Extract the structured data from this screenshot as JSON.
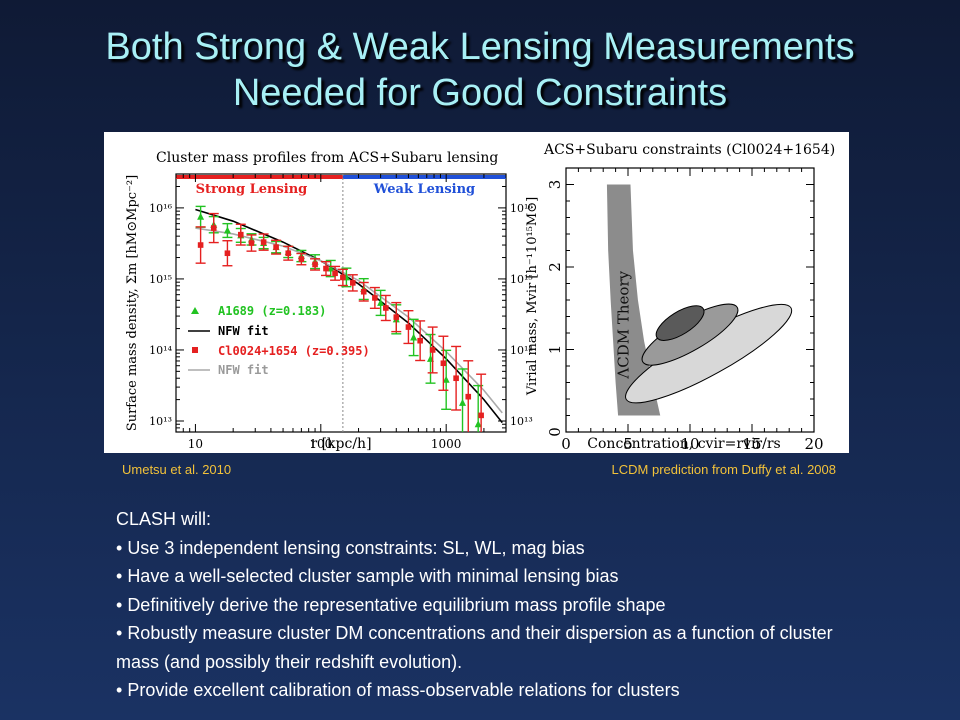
{
  "slide": {
    "title_line1": "Both Strong & Weak Lensing Measurements",
    "title_line2": "Needed for Good Constraints",
    "credit_left": "Umetsu et al. 2010",
    "credit_right": "LCDM prediction from Duffy et al. 2008",
    "clash_heading": "CLASH will:",
    "bullets": [
      "Use 3 independent lensing constraints: SL, WL, mag bias",
      "Have a well-selected cluster sample with minimal lensing bias",
      "Definitively derive the representative equilibrium mass profile shape",
      "Robustly measure cluster DM concentrations and their dispersion as a function of cluster mass (and possibly their redshift evolution).",
      "Provide excellent calibration of mass-observable relations for clusters"
    ]
  },
  "chart_data": [
    {
      "type": "scatter",
      "title": "Cluster mass profiles from ACS+Subaru lensing",
      "xlabel": "r [kpc/h]",
      "ylabel": "Surface mass density, Σm [hM⊙Mpc⁻²]",
      "xscale": "log",
      "yscale": "log",
      "xlim": [
        7,
        3000
      ],
      "ylim": [
        7000000000000.0,
        3e+16
      ],
      "xticks": [
        10,
        100,
        1000
      ],
      "xtick_labels": [
        "10",
        "100",
        "1000"
      ],
      "yticks": [
        10000000000000.0,
        100000000000000.0,
        1000000000000000.0,
        1e+16
      ],
      "ytick_labels": [
        "10¹³",
        "10¹⁴",
        "10¹⁵",
        "10¹⁶"
      ],
      "regions": [
        {
          "label": "Strong Lensing",
          "x_range": [
            7,
            150
          ],
          "color": "#e52020"
        },
        {
          "label": "Weak Lensing",
          "x_range": [
            150,
            3000
          ],
          "color": "#2050d8"
        }
      ],
      "legend_position": "lower-left",
      "series": [
        {
          "name": "A1689 (z=0.183)",
          "color": "#22c322",
          "marker": "triangle",
          "x": [
            11,
            14,
            18,
            23,
            28,
            35,
            44,
            55,
            70,
            90,
            120,
            160,
            220,
            300,
            400,
            550,
            750,
            1000,
            1350,
            1800
          ],
          "y": [
            7500000000000000.0,
            5800000000000000.0,
            4800000000000000.0,
            4100000000000000.0,
            3600000000000000.0,
            3200000000000000.0,
            2800000000000000.0,
            2400000000000000.0,
            2100000000000000.0,
            1750000000000000.0,
            1400000000000000.0,
            1050000000000000.0,
            720000000000000.0,
            460000000000000.0,
            270000000000000.0,
            150000000000000.0,
            75000000000000.0,
            38000000000000.0,
            18000000000000.0,
            9000000000000.0
          ],
          "yerr_factor": [
            1.4,
            1.3,
            1.25,
            1.25,
            1.2,
            1.2,
            1.2,
            1.2,
            1.2,
            1.25,
            1.3,
            1.35,
            1.4,
            1.5,
            1.6,
            1.8,
            2.2,
            2.6,
            3.0,
            3.5
          ]
        },
        {
          "name": "Cl0024+1654 (z=0.395)",
          "color": "#e52020",
          "marker": "square",
          "x": [
            11,
            14,
            18,
            23,
            28,
            35,
            44,
            55,
            70,
            90,
            110,
            130,
            150,
            180,
            220,
            270,
            330,
            400,
            500,
            620,
            780,
            950,
            1200,
            1500,
            1900
          ],
          "y": [
            3000000000000000.0,
            5200000000000000.0,
            2300000000000000.0,
            4200000000000000.0,
            3200000000000000.0,
            3300000000000000.0,
            2800000000000000.0,
            2300000000000000.0,
            1900000000000000.0,
            1600000000000000.0,
            1400000000000000.0,
            1200000000000000.0,
            1050000000000000.0,
            880000000000000.0,
            660000000000000.0,
            540000000000000.0,
            390000000000000.0,
            290000000000000.0,
            210000000000000.0,
            135000000000000.0,
            100000000000000.0,
            65000000000000.0,
            40000000000000.0,
            22000000000000.0,
            12000000000000.0
          ],
          "yerr_factor": [
            1.8,
            1.6,
            1.5,
            1.4,
            1.3,
            1.3,
            1.25,
            1.25,
            1.2,
            1.2,
            1.25,
            1.25,
            1.3,
            1.3,
            1.35,
            1.4,
            1.5,
            1.6,
            1.7,
            1.9,
            2.1,
            2.4,
            2.8,
            3.2,
            3.8
          ]
        },
        {
          "name": "NFW fit",
          "color": "#000000",
          "line": "solid",
          "x": [
            10,
            20,
            50,
            100,
            200,
            500,
            1000,
            2000,
            2800
          ],
          "y": [
            9500000000000000.0,
            6500000000000000.0,
            3300000000000000.0,
            1800000000000000.0,
            850000000000000.0,
            240000000000000.0,
            75000000000000.0,
            20000000000000.0,
            9500000000000.0
          ]
        },
        {
          "name": "NFW fit",
          "color": "#aaaaaa",
          "line": "solid",
          "x": [
            10,
            20,
            50,
            100,
            200,
            500,
            1000,
            2000,
            2800
          ],
          "y": [
            5200000000000000.0,
            4300000000000000.0,
            2900000000000000.0,
            1800000000000000.0,
            950000000000000.0,
            290000000000000.0,
            95000000000000.0,
            27000000000000.0,
            13000000000000.0
          ]
        }
      ]
    },
    {
      "type": "contour",
      "title": "ACS+Subaru constraints (Cl0024+1654)",
      "xlabel": "Concentration, cvir=rvir/rs",
      "ylabel": "Virial mass, Mvir [h⁻¹10¹⁵M⊙]",
      "xlim": [
        0,
        20
      ],
      "ylim": [
        0,
        3.2
      ],
      "xticks": [
        0,
        5,
        10,
        15,
        20
      ],
      "yticks": [
        0,
        1,
        2,
        3
      ],
      "band_label": "ΛCDM Theory",
      "band": {
        "left_edge": [
          [
            3.3,
            3.0
          ],
          [
            3.4,
            2.2
          ],
          [
            3.6,
            1.6
          ],
          [
            3.8,
            1.1
          ],
          [
            4.0,
            0.6
          ],
          [
            4.2,
            0.2
          ]
        ],
        "right_edge": [
          [
            5.2,
            3.0
          ],
          [
            5.4,
            2.2
          ],
          [
            5.8,
            1.6
          ],
          [
            6.3,
            1.1
          ],
          [
            7.0,
            0.6
          ],
          [
            7.6,
            0.2
          ]
        ]
      },
      "contours": [
        {
          "level": "outer",
          "color": "#d8d8d8",
          "center": [
            11.5,
            0.95
          ],
          "semi_major": 7.6,
          "semi_minor": 0.16,
          "angle_deg": -29
        },
        {
          "level": "middle",
          "color": "#9a9a9a",
          "center": [
            10.0,
            1.18
          ],
          "semi_major": 4.4,
          "semi_minor": 0.12,
          "angle_deg": -30
        },
        {
          "level": "inner",
          "color": "#5a5a5a",
          "center": [
            9.2,
            1.32
          ],
          "semi_major": 2.2,
          "semi_minor": 0.085,
          "angle_deg": -32
        }
      ]
    }
  ]
}
